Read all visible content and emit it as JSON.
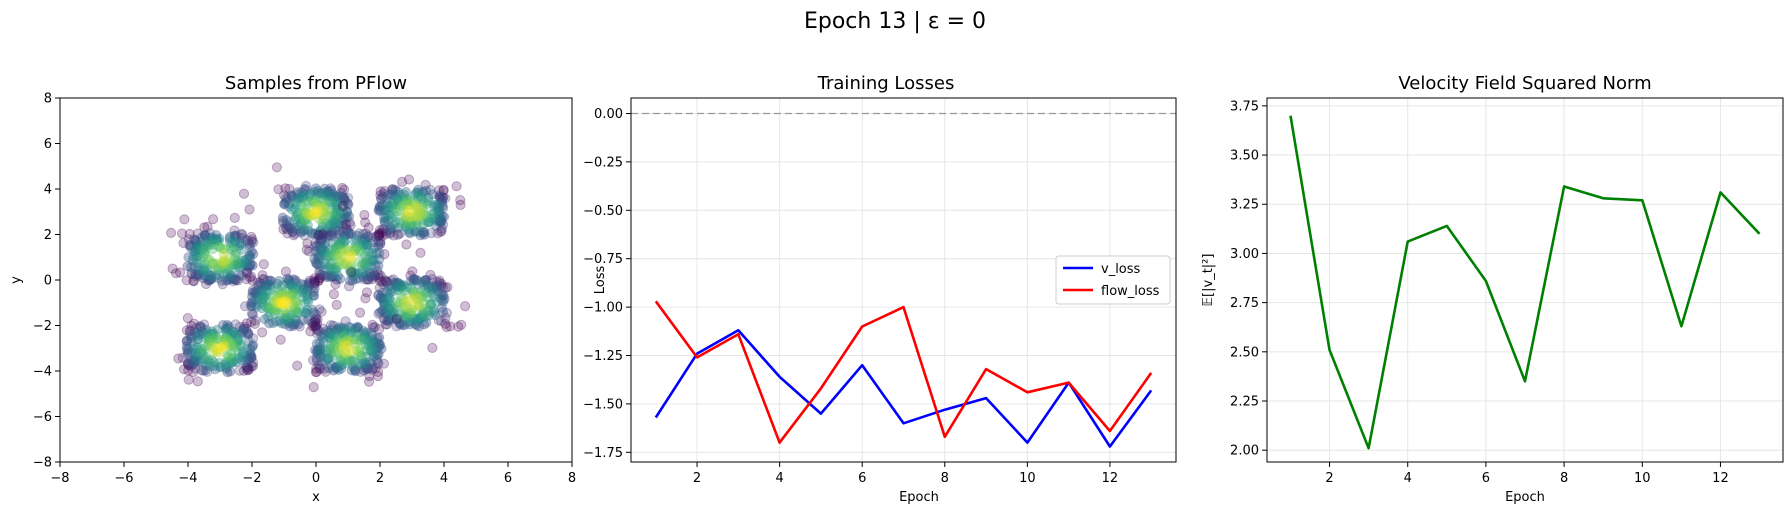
{
  "suptitle": "Epoch 13 | ε = 0",
  "chart_data": [
    {
      "type": "scatter",
      "title": "Samples from PFlow",
      "xlabel": "x",
      "ylabel": "y",
      "xlim": [
        -8,
        8
      ],
      "ylim": [
        -8,
        8
      ],
      "xticks": [
        -8,
        -6,
        -4,
        -2,
        0,
        2,
        4,
        6,
        8
      ],
      "yticks": [
        -8,
        -6,
        -4,
        -2,
        0,
        2,
        4,
        6,
        8
      ],
      "grid": false,
      "colormap": "viridis",
      "clusters": [
        {
          "x": [
            -1.0,
            1.0
          ],
          "y": [
            2.0,
            4.0
          ]
        },
        {
          "x": [
            2.0,
            4.0
          ],
          "y": [
            2.0,
            4.0
          ]
        },
        {
          "x": [
            -4.0,
            -2.0
          ],
          "y": [
            0.0,
            2.0
          ]
        },
        {
          "x": [
            0.0,
            2.0
          ],
          "y": [
            0.0,
            2.0
          ]
        },
        {
          "x": [
            -2.0,
            0.0
          ],
          "y": [
            -2.0,
            0.0
          ]
        },
        {
          "x": [
            2.0,
            4.0
          ],
          "y": [
            -2.0,
            0.0
          ]
        },
        {
          "x": [
            -4.0,
            -2.0
          ],
          "y": [
            -4.0,
            -2.0
          ]
        },
        {
          "x": [
            0.0,
            2.0
          ],
          "y": [
            -4.0,
            -2.0
          ]
        }
      ]
    },
    {
      "type": "line",
      "title": "Training Losses",
      "xlabel": "Epoch",
      "ylabel": "Loss",
      "xlim": [
        0.4,
        13.6
      ],
      "ylim": [
        -1.8,
        0.08
      ],
      "xticks": [
        2,
        4,
        6,
        8,
        10,
        12
      ],
      "yticks": [
        0.0,
        -0.25,
        -0.5,
        -0.75,
        -1.0,
        -1.25,
        -1.5,
        -1.75
      ],
      "ytick_labels": [
        "0.00",
        "−0.25",
        "−0.50",
        "−0.75",
        "−1.00",
        "−1.25",
        "−1.50",
        "−1.75"
      ],
      "grid": true,
      "legend_position": "center-right",
      "hline": 0,
      "x": [
        1,
        2,
        3,
        4,
        5,
        6,
        7,
        8,
        9,
        10,
        11,
        12,
        13
      ],
      "series": [
        {
          "name": "v_loss",
          "color": "#0000ff",
          "values": [
            -1.57,
            -1.24,
            -1.12,
            -1.36,
            -1.55,
            -1.3,
            -1.6,
            -1.53,
            -1.47,
            -1.7,
            -1.39,
            -1.72,
            -1.43
          ]
        },
        {
          "name": "flow_loss",
          "color": "#ff0000",
          "values": [
            -0.97,
            -1.26,
            -1.14,
            -1.7,
            -1.42,
            -1.1,
            -1.0,
            -1.67,
            -1.32,
            -1.44,
            -1.39,
            -1.64,
            -1.34
          ]
        }
      ]
    },
    {
      "type": "line",
      "title": "Velocity Field Squared Norm",
      "xlabel": "Epoch",
      "ylabel": "𝔼[|v_t|²]",
      "xlim": [
        0.4,
        13.6
      ],
      "ylim": [
        1.94,
        3.79
      ],
      "xticks": [
        2,
        4,
        6,
        8,
        10,
        12
      ],
      "yticks": [
        2.0,
        2.25,
        2.5,
        2.75,
        3.0,
        3.25,
        3.5,
        3.75
      ],
      "ytick_labels": [
        "2.00",
        "2.25",
        "2.50",
        "2.75",
        "3.00",
        "3.25",
        "3.50",
        "3.75"
      ],
      "grid": true,
      "x": [
        1,
        2,
        3,
        4,
        5,
        6,
        7,
        8,
        9,
        10,
        11,
        12,
        13
      ],
      "series": [
        {
          "color": "#008000",
          "values": [
            3.7,
            2.51,
            2.01,
            3.06,
            3.14,
            2.86,
            2.35,
            3.34,
            3.28,
            3.27,
            2.63,
            3.31,
            3.1
          ]
        }
      ]
    }
  ]
}
